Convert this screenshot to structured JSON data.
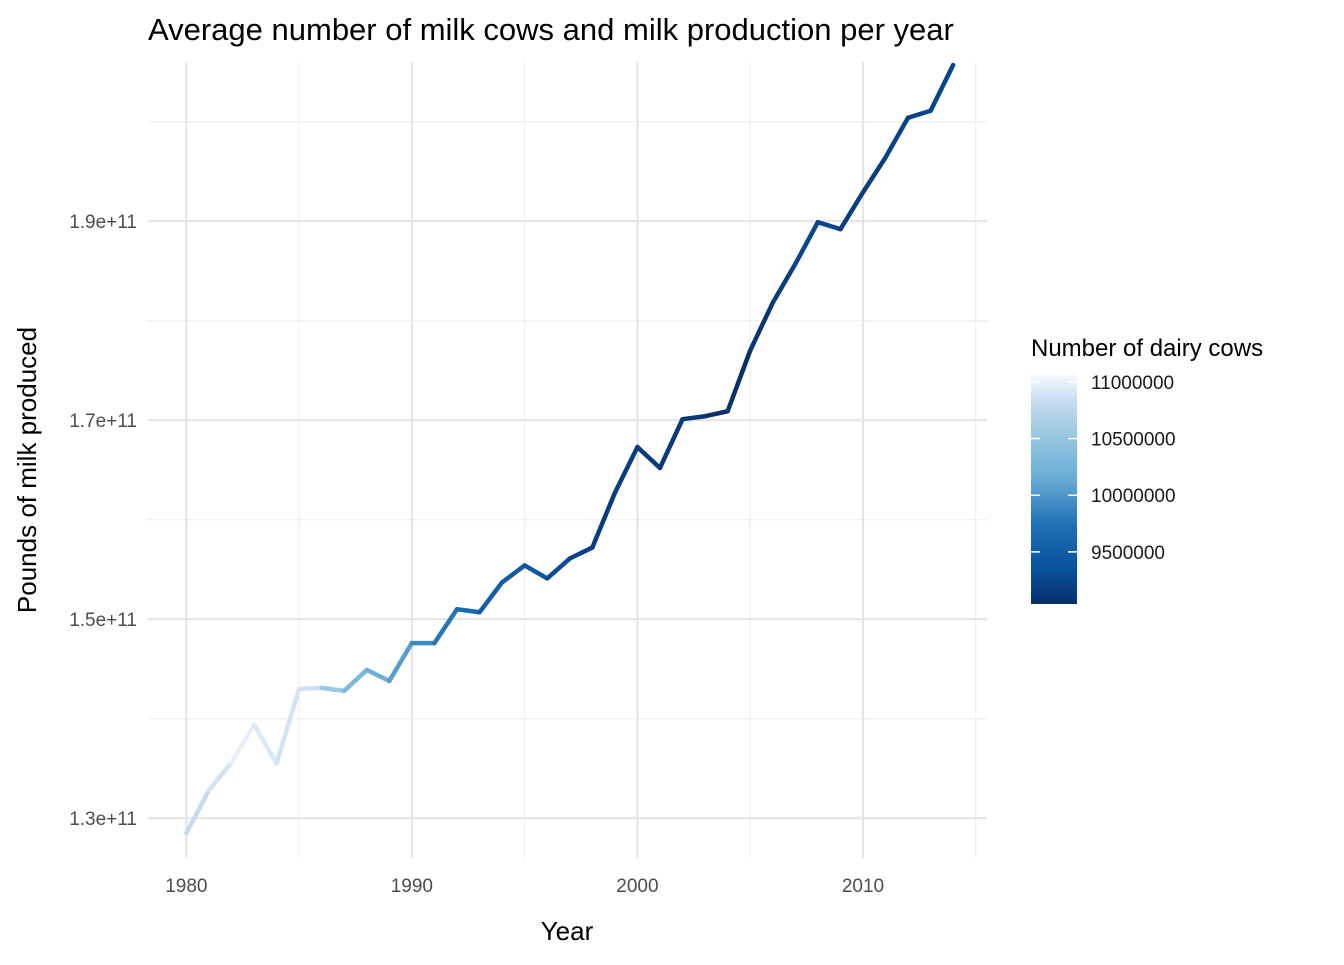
{
  "chart_data": {
    "type": "line",
    "title": "Average number of milk cows and milk production per year",
    "xlabel": "Year",
    "ylabel": "Pounds of milk produced",
    "xlim": [
      1978.3,
      2015.5
    ],
    "ylim": [
      126000000000.0,
      206000000000.0
    ],
    "x_ticks": [
      1980,
      1990,
      2000,
      2010
    ],
    "x_tick_labels": [
      "1980",
      "1990",
      "2000",
      "2010"
    ],
    "y_ticks": [
      130000000000.0,
      150000000000.0,
      170000000000.0,
      190000000000.0
    ],
    "y_tick_labels": [
      "1.3e+11",
      "1.5e+11",
      "1.7e+11",
      "1.9e+11"
    ],
    "grid": true,
    "legend": {
      "title": "Number of dairy cows",
      "position": "right",
      "type": "colorbar",
      "range": [
        9040000,
        11070000
      ],
      "breaks": [
        11000000,
        10500000,
        10000000,
        9500000
      ],
      "break_labels": [
        "11000000",
        "10500000",
        "10000000",
        "9500000"
      ],
      "color_low": "#08306b",
      "color_high": "#f7fbff"
    },
    "series": [
      {
        "x": [
          1980,
          1981,
          1982,
          1983,
          1984,
          1985,
          1986,
          1987,
          1988,
          1989,
          1990,
          1991,
          1992,
          1993,
          1994,
          1995,
          1996,
          1997,
          1998,
          1999,
          2000,
          2001,
          2002,
          2003,
          2004,
          2005,
          2006,
          2007,
          2008,
          2009,
          2010,
          2011,
          2012,
          2013,
          2014
        ],
        "y": [
          128500000000.0,
          132800000000.0,
          135600000000.0,
          139400000000.0,
          135500000000.0,
          143000000000.0,
          143100000000.0,
          142800000000.0,
          144900000000.0,
          143800000000.0,
          147600000000.0,
          147600000000.0,
          151000000000.0,
          150700000000.0,
          153700000000.0,
          155400000000.0,
          154100000000.0,
          156100000000.0,
          157200000000.0,
          162700000000.0,
          167300000000.0,
          165200000000.0,
          170100000000.0,
          170400000000.0,
          170900000000.0,
          177000000000.0,
          181800000000.0,
          185700000000.0,
          189900000000.0,
          189200000000.0,
          192900000000.0,
          196400000000.0,
          200400000000.0,
          201100000000.0,
          205700000000.0
        ],
        "cows": [
          10790000,
          10850000,
          10930000,
          11060000,
          10800000,
          10980000,
          10760000,
          10330000,
          10260000,
          10120000,
          9990000,
          9830000,
          9730000,
          9580000,
          9490000,
          9460000,
          9370000,
          9250000,
          9150000,
          9150000,
          9200000,
          9100000,
          9140000,
          9080000,
          9010000,
          9050000,
          9140000,
          9190000,
          9310000,
          9200000,
          9120000,
          9200000,
          9230000,
          9220000,
          9260000
        ]
      }
    ]
  }
}
